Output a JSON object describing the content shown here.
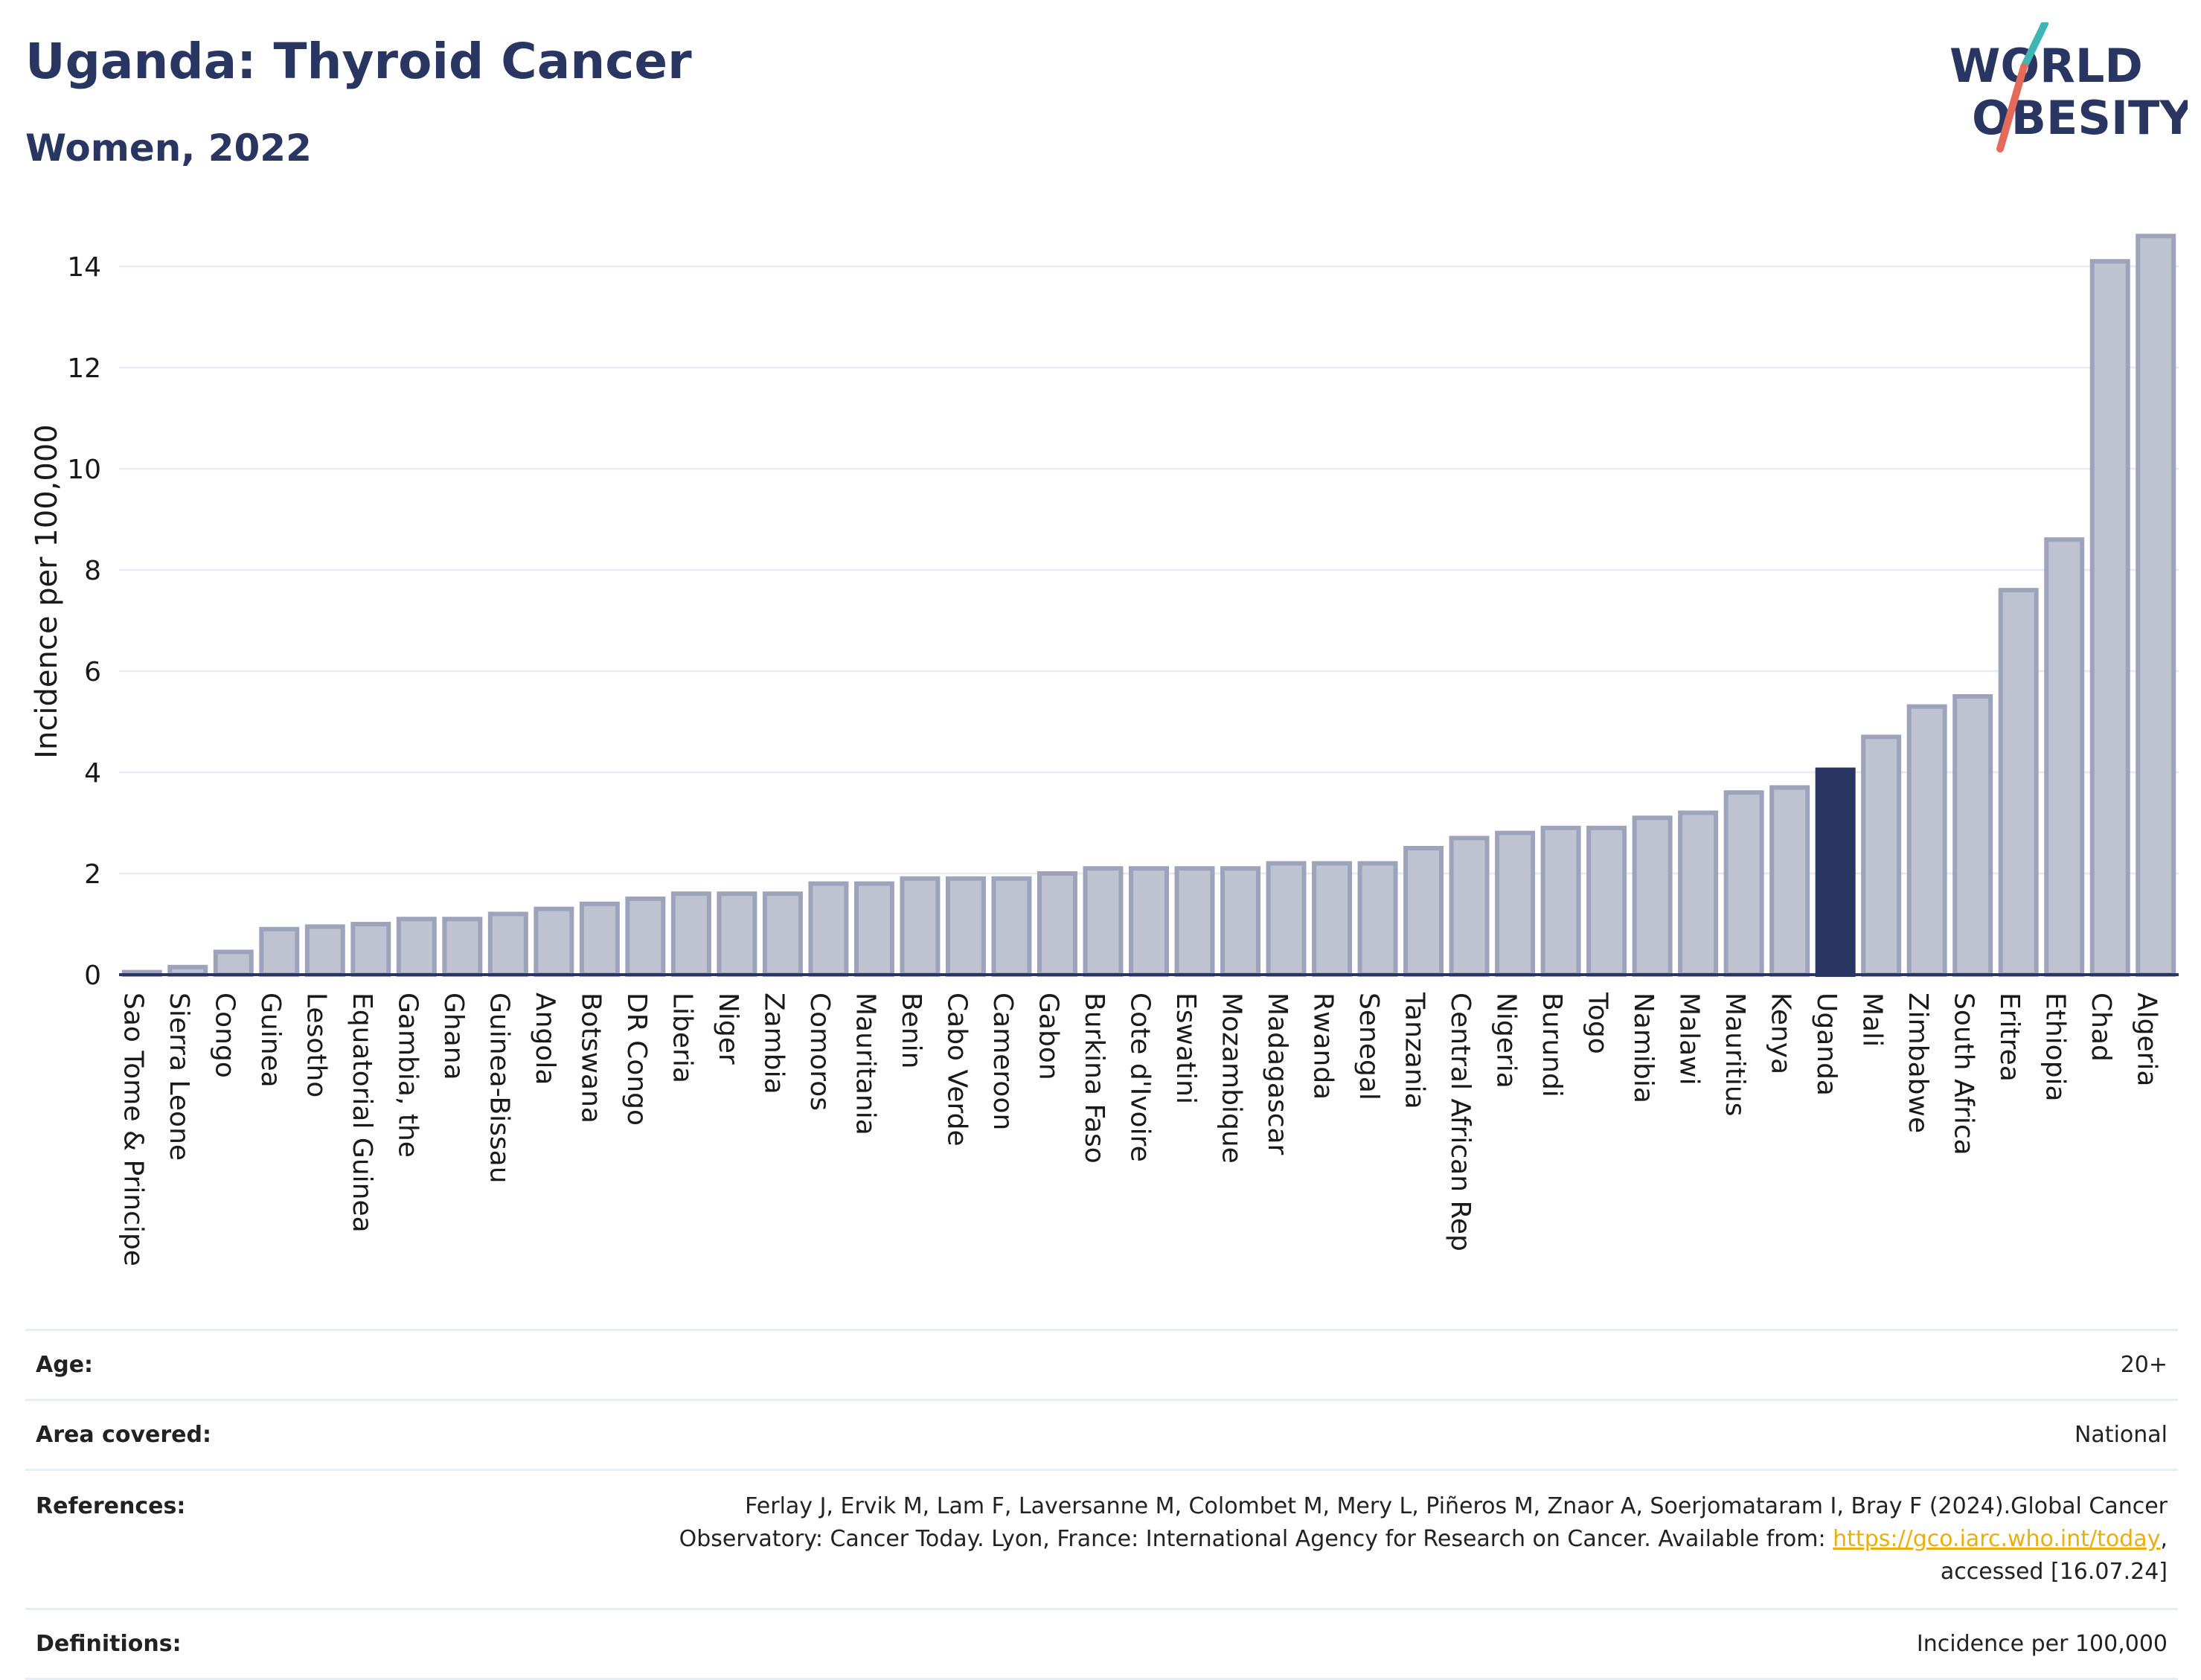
{
  "header": {
    "title": "Uganda: Thyroid Cancer",
    "subtitle": "Women, 2022"
  },
  "logo": {
    "line1": "WORLD",
    "line2": "OBESITY",
    "colors": {
      "text": "#2a3662",
      "slash_top": "#3fb6b3",
      "slash_bottom": "#e46a5a"
    }
  },
  "chart_data": {
    "type": "bar",
    "ylabel": "Incidence per 100,000",
    "xlabel": "",
    "ylim": [
      0,
      15
    ],
    "yticks": [
      0,
      2,
      4,
      6,
      8,
      10,
      12,
      14
    ],
    "grid": true,
    "highlight": "Uganda",
    "colors": {
      "bar": "#bfc3d1",
      "bar_border": "#9da3ba",
      "highlight": "#2a3662",
      "grid": "#e8ecf2"
    },
    "categories": [
      "Sao Tome & Principe",
      "Sierra Leone",
      "Congo",
      "Guinea",
      "Lesotho",
      "Equatorial Guinea",
      "Gambia, the",
      "Ghana",
      "Guinea-Bissau",
      "Angola",
      "Botswana",
      "DR Congo",
      "Liberia",
      "Niger",
      "Zambia",
      "Comoros",
      "Mauritania",
      "Benin",
      "Cabo Verde",
      "Cameroon",
      "Gabon",
      "Burkina Faso",
      "Cote d'Ivoire",
      "Eswatini",
      "Mozambique",
      "Madagascar",
      "Rwanda",
      "Senegal",
      "Tanzania",
      "Central African Rep",
      "Nigeria",
      "Burundi",
      "Togo",
      "Namibia",
      "Malawi",
      "Mauritius",
      "Kenya",
      "Uganda",
      "Mali",
      "Zimbabwe",
      "South Africa",
      "Eritrea",
      "Ethiopia",
      "Chad",
      "Algeria"
    ],
    "values": [
      0.05,
      0.15,
      0.45,
      0.9,
      0.95,
      1.0,
      1.1,
      1.1,
      1.2,
      1.3,
      1.4,
      1.5,
      1.6,
      1.6,
      1.6,
      1.8,
      1.8,
      1.9,
      1.9,
      1.9,
      2.0,
      2.1,
      2.1,
      2.1,
      2.1,
      2.2,
      2.2,
      2.2,
      2.5,
      2.7,
      2.8,
      2.9,
      2.9,
      3.1,
      3.2,
      3.6,
      3.7,
      4.05,
      4.7,
      5.3,
      5.5,
      7.6,
      8.6,
      14.1,
      14.6
    ]
  },
  "info": {
    "age": {
      "label": "Age:",
      "value": "20+"
    },
    "area": {
      "label": "Area covered:",
      "value": "National"
    },
    "references": {
      "label": "References:",
      "text1": "Ferlay J, Ervik M, Lam F, Laversanne M, Colombet M, Mery L, Piñeros M, Znaor A, Soerjomataram I, Bray F (2024).Global Cancer",
      "text2": "Observatory: Cancer Today. Lyon, France: International Agency for Research on Cancer. Available from: ",
      "link": "https://gco.iarc.who.int/today",
      "text3": ",",
      "text4": "accessed [16.07.24]"
    },
    "definitions": {
      "label": "Definitions:",
      "value": "Incidence per 100,000"
    }
  }
}
